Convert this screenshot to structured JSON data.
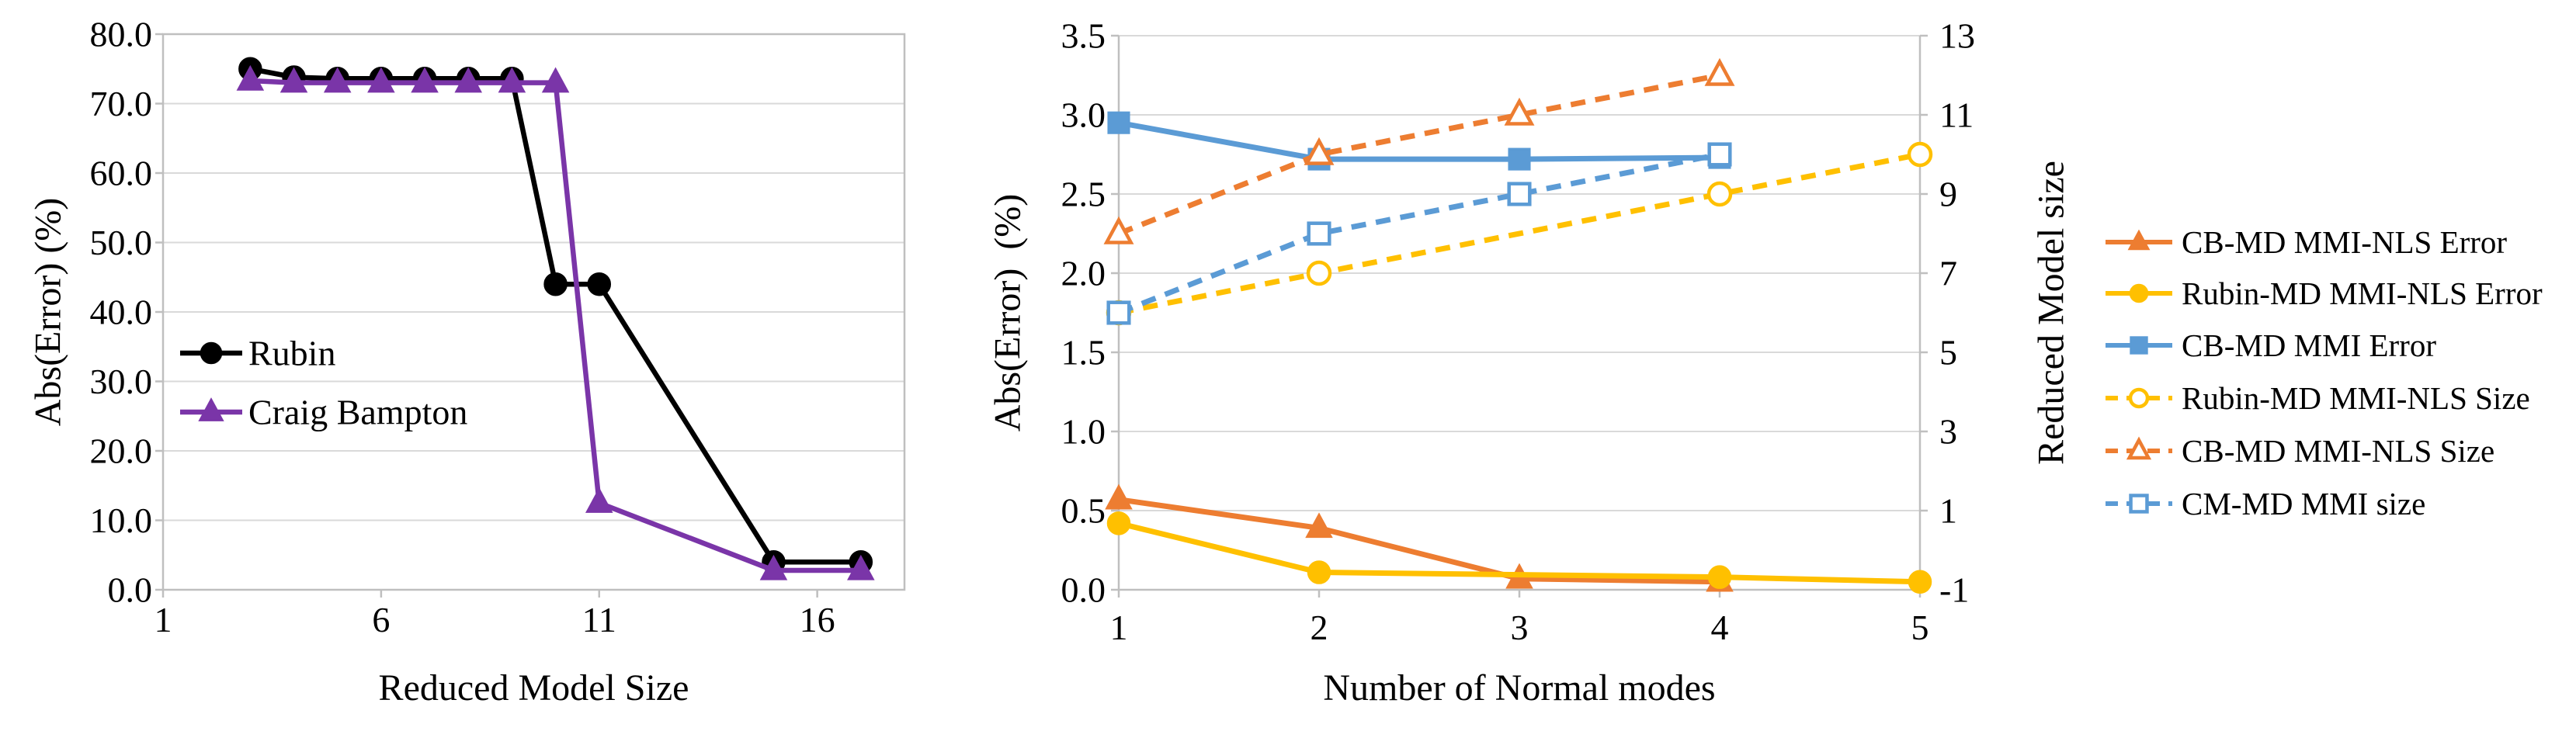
{
  "figure": {
    "background": "#FFFFFF",
    "colors": {
      "black": "#000000",
      "purple": "#7A35A8",
      "orange": "#ED7D31",
      "yellow": "#FFC000",
      "blue": "#5B9BD5",
      "gridline": "#D9D9D9",
      "axis_line": "#BFBFBF",
      "text": "#000000"
    }
  },
  "chart_data": [
    {
      "id": "error-vs-reduced-model-size",
      "type": "line",
      "xlabel": "Reduced Model Size",
      "ylabel": "Abs(Error) (%)",
      "xlim": [
        1,
        18
      ],
      "ylim": [
        0,
        80
      ],
      "grid": true,
      "legend_position": "inside-left",
      "x_axis": {
        "tick_values": [
          1,
          6,
          11,
          16
        ],
        "tick_labels": [
          "1",
          "6",
          "11",
          "16"
        ]
      },
      "y_axis": {
        "tick_values": [
          0,
          10,
          20,
          30,
          40,
          50,
          60,
          70,
          80
        ],
        "tick_labels": [
          "0.0",
          "10.0",
          "20.0",
          "30.0",
          "40.0",
          "50.0",
          "60.0",
          "70.0",
          "80.0"
        ]
      },
      "series": [
        {
          "name": "Rubin",
          "color": "#000000",
          "marker": "circle",
          "filled": true,
          "linestyle": "solid",
          "axis": "left",
          "x": [
            3,
            4,
            5,
            6,
            7,
            8,
            9,
            10,
            11,
            15,
            17
          ],
          "y": [
            75,
            73.8,
            73.6,
            73.6,
            73.6,
            73.6,
            73.6,
            44,
            44,
            4,
            4
          ]
        },
        {
          "name": "Craig Bampton",
          "color": "#7A35A8",
          "marker": "triangle",
          "filled": true,
          "linestyle": "solid",
          "axis": "left",
          "x": [
            3,
            4,
            5,
            6,
            7,
            8,
            9,
            10,
            11,
            15,
            17
          ],
          "y": [
            73.3,
            73,
            73,
            73,
            73,
            73,
            73,
            73,
            12.5,
            2.8,
            2.8
          ]
        }
      ]
    },
    {
      "id": "error-and-size-vs-normal-modes",
      "type": "line",
      "xlabel": "Number of Normal modes",
      "ylabel": "Abs(Error)  (%)",
      "ylabel_right": "Reduced Model size",
      "xlim": [
        1,
        5
      ],
      "ylim": [
        0,
        3.5
      ],
      "ylim_right": [
        -1,
        13
      ],
      "grid": true,
      "legend_position": "outside-right",
      "x_axis": {
        "tick_values": [
          1,
          2,
          3,
          4,
          5
        ],
        "tick_labels": [
          "1",
          "2",
          "3",
          "4",
          "5"
        ]
      },
      "y_axis": {
        "tick_values": [
          0,
          0.5,
          1,
          1.5,
          2,
          2.5,
          3,
          3.5
        ],
        "tick_labels": [
          "0.0",
          "0.5",
          "1.0",
          "1.5",
          "2.0",
          "2.5",
          "3.0",
          "3.5"
        ]
      },
      "y_axis_right": {
        "tick_values": [
          -1,
          1,
          3,
          5,
          7,
          9,
          11,
          13
        ],
        "tick_labels": [
          "-1",
          "1",
          "3",
          "5",
          "7",
          "9",
          "11",
          "13"
        ]
      },
      "series": [
        {
          "name": "CB-MD MMI-NLS Error",
          "color": "#ED7D31",
          "marker": "triangle",
          "filled": true,
          "linestyle": "solid",
          "axis": "left",
          "x": [
            1,
            2,
            3,
            4
          ],
          "y": [
            0.57,
            0.39,
            0.07,
            0.05
          ]
        },
        {
          "name": "Rubin-MD MMI-NLS Error",
          "color": "#FFC000",
          "marker": "circle",
          "filled": true,
          "linestyle": "solid",
          "axis": "left",
          "x": [
            1,
            2,
            4,
            5
          ],
          "y": [
            0.42,
            0.11,
            0.08,
            0.05
          ]
        },
        {
          "name": "CB-MD MMI Error",
          "color": "#5B9BD5",
          "marker": "square",
          "filled": true,
          "linestyle": "solid",
          "axis": "left",
          "x": [
            1,
            2,
            3,
            4
          ],
          "y": [
            2.95,
            2.72,
            2.72,
            2.73
          ]
        },
        {
          "name": "Rubin-MD MMI-NLS Size",
          "color": "#FFC000",
          "marker": "circle",
          "filled": false,
          "linestyle": "dashed",
          "axis": "right",
          "x": [
            1,
            2,
            4,
            5
          ],
          "y": [
            6,
            7,
            9,
            10
          ]
        },
        {
          "name": "CB-MD MMI-NLS Size",
          "color": "#ED7D31",
          "marker": "triangle",
          "filled": false,
          "linestyle": "dashed",
          "axis": "right",
          "x": [
            1,
            2,
            3,
            4
          ],
          "y": [
            8,
            10,
            11,
            12
          ]
        },
        {
          "name": "CM-MD MMI size",
          "color": "#5B9BD5",
          "marker": "square",
          "filled": false,
          "linestyle": "dashed",
          "axis": "right",
          "x": [
            1,
            2,
            3,
            4
          ],
          "y": [
            6,
            8,
            9,
            10
          ]
        }
      ]
    }
  ]
}
